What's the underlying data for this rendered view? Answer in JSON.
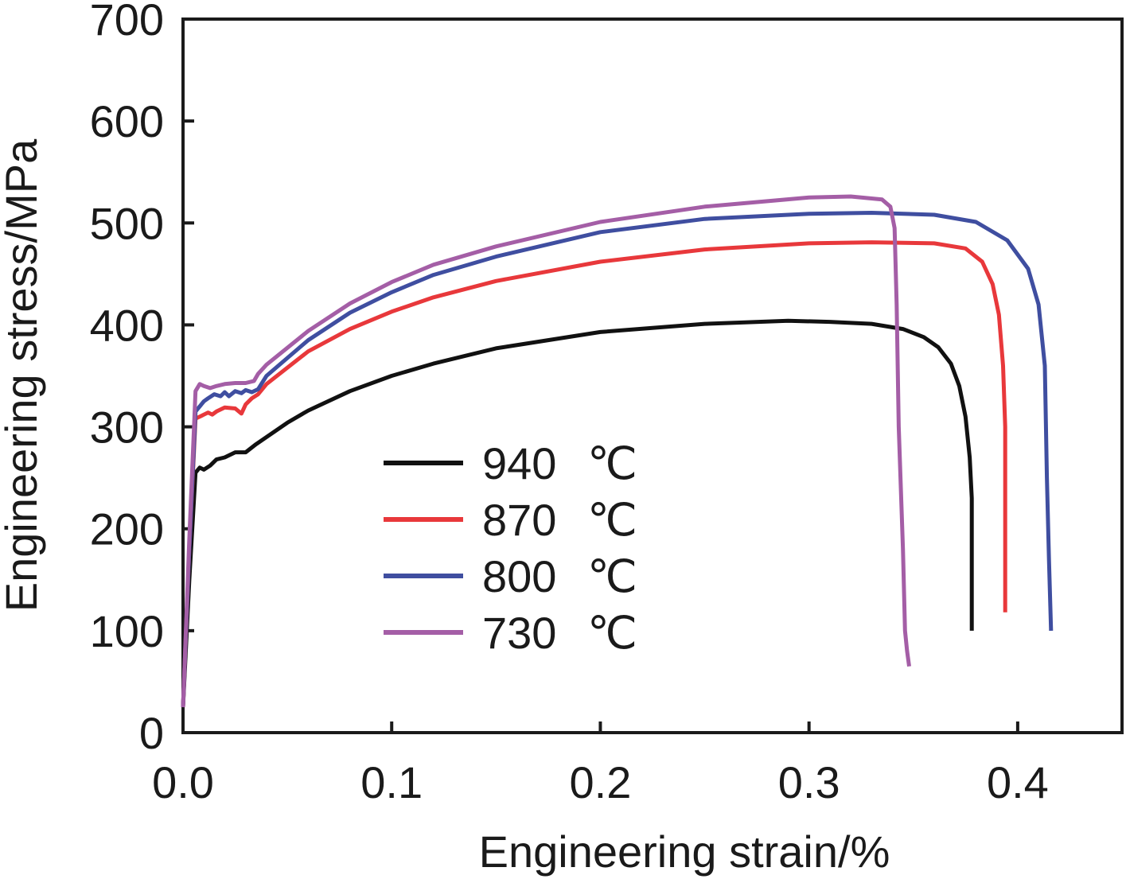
{
  "chart_data": {
    "type": "line",
    "title": "",
    "xlabel": "Engineering strain/%",
    "ylabel": "Engineering stress/MPa",
    "xlim": [
      0,
      0.45
    ],
    "ylim": [
      0,
      700
    ],
    "xticks": [
      0.0,
      0.1,
      0.2,
      0.3,
      0.4
    ],
    "xtick_labels": [
      "0.0",
      "0.1",
      "0.2",
      "0.3",
      "0.4"
    ],
    "yticks": [
      0,
      100,
      200,
      300,
      400,
      500,
      600,
      700
    ],
    "ytick_labels": [
      "0",
      "100",
      "200",
      "300",
      "400",
      "500",
      "600",
      "700"
    ],
    "grid": false,
    "legend": {
      "position": "lower-center",
      "unit_symbol": "℃"
    },
    "series": [
      {
        "name": "940",
        "color": "#111111",
        "x": [
          0.0,
          0.003,
          0.006,
          0.008,
          0.01,
          0.013,
          0.016,
          0.02,
          0.025,
          0.03,
          0.035,
          0.04,
          0.05,
          0.06,
          0.08,
          0.1,
          0.12,
          0.15,
          0.2,
          0.25,
          0.29,
          0.31,
          0.33,
          0.345,
          0.355,
          0.362,
          0.368,
          0.372,
          0.375,
          0.377,
          0.378,
          0.378,
          0.378
        ],
        "y": [
          25,
          150,
          255,
          260,
          258,
          262,
          268,
          270,
          275,
          275,
          283,
          290,
          304,
          316,
          335,
          350,
          362,
          377,
          393,
          401,
          404,
          403,
          401,
          396,
          388,
          378,
          362,
          340,
          310,
          270,
          230,
          160,
          100
        ]
      },
      {
        "name": "870",
        "color": "#e8383b",
        "x": [
          0.0,
          0.003,
          0.006,
          0.008,
          0.01,
          0.012,
          0.014,
          0.016,
          0.02,
          0.025,
          0.028,
          0.03,
          0.033,
          0.036,
          0.04,
          0.06,
          0.08,
          0.1,
          0.12,
          0.15,
          0.2,
          0.25,
          0.3,
          0.33,
          0.36,
          0.375,
          0.383,
          0.388,
          0.391,
          0.393,
          0.394,
          0.394,
          0.394
        ],
        "y": [
          25,
          180,
          308,
          310,
          312,
          314,
          312,
          315,
          319,
          318,
          313,
          322,
          328,
          332,
          342,
          374,
          396,
          413,
          427,
          443,
          462,
          474,
          480,
          481,
          480,
          475,
          462,
          440,
          410,
          360,
          300,
          200,
          118
        ]
      },
      {
        "name": "800",
        "color": "#3f4ea0",
        "x": [
          0.0,
          0.003,
          0.006,
          0.008,
          0.01,
          0.012,
          0.015,
          0.018,
          0.02,
          0.022,
          0.025,
          0.028,
          0.03,
          0.033,
          0.036,
          0.04,
          0.06,
          0.08,
          0.1,
          0.12,
          0.15,
          0.2,
          0.25,
          0.3,
          0.33,
          0.36,
          0.38,
          0.395,
          0.405,
          0.41,
          0.413,
          0.414,
          0.415,
          0.416
        ],
        "y": [
          25,
          180,
          315,
          320,
          325,
          328,
          332,
          330,
          334,
          330,
          335,
          333,
          336,
          334,
          337,
          350,
          385,
          412,
          432,
          449,
          467,
          491,
          504,
          509,
          510,
          508,
          501,
          483,
          455,
          420,
          360,
          250,
          170,
          100
        ]
      },
      {
        "name": "730",
        "color": "#a45ea6",
        "x": [
          0.0,
          0.003,
          0.006,
          0.008,
          0.01,
          0.013,
          0.016,
          0.02,
          0.025,
          0.03,
          0.034,
          0.036,
          0.04,
          0.06,
          0.08,
          0.1,
          0.12,
          0.15,
          0.2,
          0.25,
          0.3,
          0.32,
          0.335,
          0.339,
          0.341,
          0.342,
          0.343,
          0.345,
          0.346,
          0.347,
          0.348
        ],
        "y": [
          25,
          190,
          335,
          342,
          340,
          338,
          340,
          342,
          343,
          343,
          345,
          352,
          361,
          394,
          421,
          442,
          459,
          477,
          501,
          516,
          525,
          526,
          523,
          516,
          495,
          420,
          300,
          180,
          100,
          80,
          65
        ]
      }
    ]
  }
}
